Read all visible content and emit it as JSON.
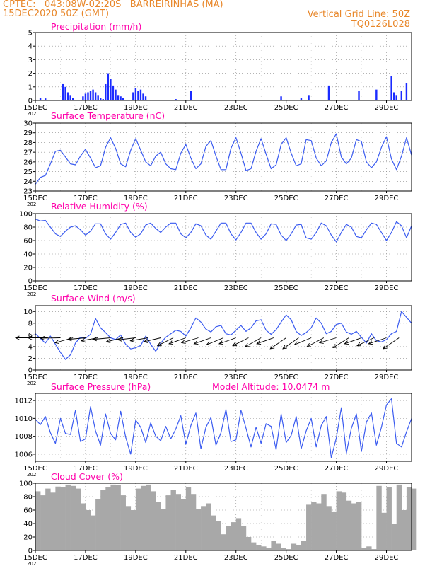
{
  "header": {
    "line1_left": "CPTEC:   043:08W-02:20S   BARREIRINHAS (MA)",
    "line2_left": "15DEC2020 50Z (GMT)",
    "line1_right": "Vertical Grid Line: 50Z",
    "line2_right": "TQ0126L028"
  },
  "colors": {
    "header": "#e8872a",
    "title": "#ff00aa",
    "line": "#3a5bf0",
    "bar": "#1a2bff",
    "cloud": "#a8a8a8",
    "frame": "#000000",
    "grid": "#888888"
  },
  "x_ticks": [
    "15DEC",
    "17DEC",
    "19DEC",
    "21DEC",
    "23DEC",
    "25DEC",
    "27DEC",
    "29DEC"
  ],
  "x_tick_sub": "202",
  "chart_data": [
    {
      "type": "bar",
      "title": "Precipitation (mm/h)",
      "ylim": [
        0,
        5
      ],
      "yticks": [
        0,
        1,
        2,
        3,
        4,
        5
      ],
      "x_days": [
        15,
        30
      ],
      "x": [
        15.2,
        15.4,
        16.1,
        16.2,
        16.3,
        16.4,
        16.5,
        16.9,
        17.0,
        17.1,
        17.2,
        17.3,
        17.4,
        17.5,
        17.6,
        17.7,
        17.8,
        17.9,
        18.0,
        18.1,
        18.2,
        18.3,
        18.4,
        18.5,
        18.9,
        19.0,
        19.1,
        19.2,
        19.3,
        19.4,
        20.6,
        21.2,
        24.8,
        25.6,
        25.9,
        26.7,
        27.9,
        28.6,
        29.2,
        29.3,
        29.4,
        29.6,
        29.8
      ],
      "values": [
        0.2,
        0.15,
        1.2,
        1.0,
        0.6,
        0.4,
        0.2,
        0.3,
        0.5,
        0.6,
        0.7,
        0.8,
        0.6,
        0.4,
        0.2,
        0.1,
        1.2,
        2.0,
        1.6,
        1.1,
        0.8,
        0.4,
        0.3,
        0.2,
        0.6,
        0.9,
        0.7,
        0.8,
        0.5,
        0.3,
        0.1,
        0.7,
        0.3,
        0.2,
        0.4,
        1.1,
        0.7,
        0.8,
        1.8,
        0.6,
        0.4,
        0.7,
        1.3
      ]
    },
    {
      "type": "line",
      "title": "Surface Temperature (nC)",
      "ylim": [
        23,
        30
      ],
      "yticks": [
        23,
        24,
        25,
        26,
        27,
        28,
        29,
        30
      ],
      "x_days": [
        15,
        30
      ],
      "x": [
        15.0,
        15.2,
        15.4,
        15.6,
        15.8,
        16.0,
        16.2,
        16.4,
        16.6,
        16.8,
        17.0,
        17.2,
        17.4,
        17.6,
        17.8,
        18.0,
        18.2,
        18.4,
        18.6,
        18.8,
        19.0,
        19.2,
        19.4,
        19.6,
        19.8,
        20.0,
        20.2,
        20.4,
        20.6,
        20.8,
        21.0,
        21.2,
        21.4,
        21.6,
        21.8,
        22.0,
        22.2,
        22.4,
        22.6,
        22.8,
        23.0,
        23.2,
        23.4,
        23.6,
        23.8,
        24.0,
        24.2,
        24.4,
        24.6,
        24.8,
        25.0,
        25.2,
        25.4,
        25.6,
        25.8,
        26.0,
        26.2,
        26.4,
        26.6,
        26.8,
        27.0,
        27.2,
        27.4,
        27.6,
        27.8,
        28.0,
        28.2,
        28.4,
        28.6,
        28.8,
        29.0,
        29.2,
        29.4,
        29.6,
        29.8,
        30.0
      ],
      "values": [
        23.7,
        24.4,
        24.6,
        25.8,
        27.1,
        27.2,
        26.5,
        25.8,
        25.7,
        26.6,
        27.3,
        26.4,
        25.4,
        25.6,
        27.5,
        28.5,
        27.4,
        25.8,
        25.5,
        27.2,
        28.4,
        27.2,
        26.0,
        25.6,
        26.6,
        27.0,
        25.8,
        25.3,
        25.2,
        26.9,
        27.8,
        26.4,
        25.3,
        25.8,
        27.6,
        28.2,
        26.6,
        25.2,
        25.2,
        27.4,
        28.5,
        26.9,
        25.1,
        25.3,
        27.1,
        28.4,
        26.8,
        25.3,
        25.7,
        27.8,
        28.5,
        26.9,
        25.6,
        25.8,
        28.3,
        28.2,
        26.4,
        25.6,
        26.1,
        28.0,
        28.9,
        26.5,
        25.8,
        26.4,
        28.3,
        28.1,
        26.0,
        25.4,
        26.0,
        27.5,
        28.6,
        26.3,
        25.2,
        26.6,
        28.5,
        26.7
      ]
    },
    {
      "type": "line",
      "title": "Relative Humidity (%)",
      "ylim": [
        0,
        100
      ],
      "yticks": [
        0,
        20,
        40,
        60,
        80,
        100
      ],
      "x_days": [
        15,
        30
      ],
      "x": [
        15.0,
        15.2,
        15.4,
        15.6,
        15.8,
        16.0,
        16.2,
        16.4,
        16.6,
        16.8,
        17.0,
        17.2,
        17.4,
        17.6,
        17.8,
        18.0,
        18.2,
        18.4,
        18.6,
        18.8,
        19.0,
        19.2,
        19.4,
        19.6,
        19.8,
        20.0,
        20.2,
        20.4,
        20.6,
        20.8,
        21.0,
        21.2,
        21.4,
        21.6,
        21.8,
        22.0,
        22.2,
        22.4,
        22.6,
        22.8,
        23.0,
        23.2,
        23.4,
        23.6,
        23.8,
        24.0,
        24.2,
        24.4,
        24.6,
        24.8,
        25.0,
        25.2,
        25.4,
        25.6,
        25.8,
        26.0,
        26.2,
        26.4,
        26.6,
        26.8,
        27.0,
        27.2,
        27.4,
        27.6,
        27.8,
        28.0,
        28.2,
        28.4,
        28.6,
        28.8,
        29.0,
        29.2,
        29.4,
        29.6,
        29.8,
        30.0
      ],
      "values": [
        92,
        89,
        90,
        80,
        70,
        66,
        74,
        80,
        82,
        76,
        68,
        74,
        85,
        85,
        70,
        62,
        72,
        84,
        86,
        72,
        65,
        70,
        83,
        86,
        78,
        72,
        80,
        86,
        86,
        70,
        64,
        72,
        85,
        82,
        68,
        62,
        74,
        86,
        86,
        70,
        61,
        72,
        86,
        86,
        72,
        62,
        70,
        85,
        84,
        68,
        60,
        70,
        83,
        84,
        64,
        62,
        72,
        86,
        82,
        68,
        58,
        72,
        84,
        80,
        66,
        64,
        76,
        86,
        84,
        72,
        60,
        72,
        88,
        82,
        64,
        82
      ]
    },
    {
      "type": "line",
      "title": "Surface Wind (m/s)",
      "ylim": [
        0,
        11
      ],
      "yticks": [
        0,
        2,
        4,
        6,
        8,
        10
      ],
      "x_days": [
        15,
        30
      ],
      "x": [
        15.0,
        15.2,
        15.4,
        15.6,
        15.8,
        16.0,
        16.2,
        16.4,
        16.6,
        16.8,
        17.0,
        17.2,
        17.4,
        17.6,
        17.8,
        18.0,
        18.2,
        18.4,
        18.6,
        18.8,
        19.0,
        19.2,
        19.4,
        19.6,
        19.8,
        20.0,
        20.2,
        20.4,
        20.6,
        20.8,
        21.0,
        21.2,
        21.4,
        21.6,
        21.8,
        22.0,
        22.2,
        22.4,
        22.6,
        22.8,
        23.0,
        23.2,
        23.4,
        23.6,
        23.8,
        24.0,
        24.2,
        24.4,
        24.6,
        24.8,
        25.0,
        25.2,
        25.4,
        25.6,
        25.8,
        26.0,
        26.2,
        26.4,
        26.6,
        26.8,
        27.0,
        27.2,
        27.4,
        27.6,
        27.8,
        28.0,
        28.2,
        28.4,
        28.6,
        28.8,
        29.0,
        29.2,
        29.4,
        29.6,
        29.8,
        30.0
      ],
      "values": [
        6.2,
        5.4,
        4.6,
        5.8,
        4.4,
        3.0,
        1.8,
        2.6,
        4.6,
        5.6,
        5.4,
        6.1,
        8.8,
        7.2,
        6.4,
        5.5,
        5.2,
        6.0,
        4.4,
        3.6,
        3.8,
        4.2,
        5.8,
        4.4,
        3.2,
        4.6,
        5.6,
        6.2,
        6.8,
        6.6,
        5.8,
        7.2,
        8.9,
        8.2,
        7.0,
        6.5,
        7.4,
        7.6,
        6.2,
        6.0,
        6.8,
        7.6,
        6.6,
        7.2,
        8.4,
        8.6,
        6.8,
        6.1,
        6.9,
        8.2,
        9.4,
        8.6,
        6.6,
        5.9,
        6.4,
        7.2,
        8.9,
        8.0,
        6.2,
        6.6,
        7.8,
        8.0,
        6.5,
        6.1,
        6.6,
        5.6,
        4.6,
        6.2,
        5.0,
        4.8,
        5.2,
        6.2,
        6.6,
        10.0,
        9.0,
        8.0
      ],
      "arrow_x": [
        15.0,
        15.5,
        16.0,
        16.5,
        17.0,
        17.5,
        18.0,
        18.5,
        19.0,
        19.5,
        20.0,
        20.5,
        21.0,
        21.5,
        22.0,
        22.5,
        23.0,
        23.5,
        24.0,
        24.5,
        25.0,
        25.5,
        26.0,
        26.5,
        27.0,
        27.5,
        28.0,
        28.5,
        29.0,
        29.5
      ],
      "arrow_dx": [
        1.0,
        1.0,
        1.0,
        0.9,
        0.9,
        0.85,
        0.9,
        0.85,
        0.9,
        0.9,
        0.85,
        0.8,
        0.85,
        0.85,
        0.85,
        0.85,
        0.85,
        0.8,
        0.8,
        0.85,
        0.8,
        0.8,
        0.85,
        0.85,
        0.85,
        0.8,
        0.85,
        0.85,
        0.9,
        0.8
      ],
      "arrow_dy": [
        0.0,
        0.0,
        -0.02,
        -0.25,
        -0.08,
        -0.15,
        -0.08,
        -0.2,
        -0.1,
        -0.15,
        -0.2,
        -0.4,
        -0.3,
        -0.25,
        -0.3,
        -0.35,
        -0.3,
        -0.4,
        -0.45,
        -0.3,
        -0.55,
        -0.55,
        -0.35,
        -0.45,
        -0.25,
        -0.5,
        -0.3,
        -0.4,
        -0.3,
        -0.55
      ]
    },
    {
      "type": "line",
      "title": "Surface Pressure (hPa)",
      "ylim": [
        1005.2,
        1012.8
      ],
      "yticks": [
        1006,
        1008,
        1010,
        1012
      ],
      "x_days": [
        15,
        30
      ],
      "x": [
        15.0,
        15.2,
        15.4,
        15.6,
        15.8,
        16.0,
        16.2,
        16.4,
        16.6,
        16.8,
        17.0,
        17.2,
        17.4,
        17.6,
        17.8,
        18.0,
        18.2,
        18.4,
        18.6,
        18.8,
        19.0,
        19.2,
        19.4,
        19.6,
        19.8,
        20.0,
        20.2,
        20.4,
        20.6,
        20.8,
        21.0,
        21.2,
        21.4,
        21.6,
        21.8,
        22.0,
        22.2,
        22.4,
        22.6,
        22.8,
        23.0,
        23.2,
        23.4,
        23.6,
        23.8,
        24.0,
        24.2,
        24.4,
        24.6,
        24.8,
        25.0,
        25.2,
        25.4,
        25.6,
        25.8,
        26.0,
        26.2,
        26.4,
        26.6,
        26.8,
        27.0,
        27.2,
        27.4,
        27.6,
        27.8,
        28.0,
        28.2,
        28.4,
        28.6,
        28.8,
        29.0,
        29.2,
        29.4,
        29.6,
        29.8,
        30.0
      ],
      "values": [
        1009.9,
        1009.3,
        1010.2,
        1008.4,
        1007.2,
        1010.0,
        1008.3,
        1008.2,
        1010.9,
        1007.4,
        1007.7,
        1011.3,
        1008.6,
        1007.0,
        1010.5,
        1008.3,
        1007.6,
        1010.8,
        1007.9,
        1006.0,
        1009.8,
        1009.0,
        1007.3,
        1009.5,
        1008.0,
        1007.5,
        1009.1,
        1007.7,
        1008.8,
        1010.3,
        1007.1,
        1009.2,
        1010.6,
        1006.6,
        1009.0,
        1010.1,
        1007.0,
        1008.4,
        1011.0,
        1007.4,
        1007.6,
        1010.9,
        1008.9,
        1006.8,
        1009.0,
        1007.2,
        1009.4,
        1009.1,
        1006.5,
        1010.5,
        1007.3,
        1008.1,
        1010.2,
        1006.6,
        1008.6,
        1010.0,
        1006.8,
        1009.2,
        1010.2,
        1005.6,
        1007.8,
        1011.2,
        1006.1,
        1008.9,
        1010.5,
        1006.3,
        1009.6,
        1010.6,
        1007.0,
        1009.0,
        1011.5,
        1012.2,
        1007.2,
        1006.8,
        1008.5,
        1010.0
      ]
    },
    {
      "type": "area",
      "title": "Cloud Cover (%)",
      "ylim": [
        0,
        100
      ],
      "yticks": [
        0,
        20,
        40,
        60,
        80,
        100
      ],
      "x_days": [
        15,
        30
      ],
      "x": [
        15.0,
        15.2,
        15.4,
        15.6,
        15.8,
        16.0,
        16.2,
        16.4,
        16.6,
        16.8,
        17.0,
        17.2,
        17.4,
        17.6,
        17.8,
        18.0,
        18.2,
        18.4,
        18.6,
        18.8,
        19.0,
        19.2,
        19.4,
        19.6,
        19.8,
        20.0,
        20.2,
        20.4,
        20.6,
        20.8,
        21.0,
        21.2,
        21.4,
        21.6,
        21.8,
        22.0,
        22.2,
        22.4,
        22.6,
        22.8,
        23.0,
        23.2,
        23.4,
        23.6,
        23.8,
        24.0,
        24.2,
        24.4,
        24.6,
        24.8,
        25.0,
        25.2,
        25.4,
        25.6,
        25.8,
        26.0,
        26.2,
        26.4,
        26.6,
        26.8,
        27.0,
        27.2,
        27.4,
        27.6,
        27.8,
        28.0,
        28.2,
        28.4,
        28.6,
        28.8,
        29.0,
        29.2,
        29.4,
        29.6,
        29.8,
        30.0
      ],
      "values": [
        88,
        82,
        92,
        86,
        95,
        94,
        98,
        96,
        92,
        70,
        60,
        52,
        76,
        90,
        94,
        98,
        97,
        82,
        66,
        60,
        92,
        96,
        98,
        88,
        72,
        62,
        82,
        90,
        84,
        76,
        94,
        84,
        62,
        66,
        70,
        52,
        44,
        24,
        36,
        42,
        48,
        36,
        20,
        12,
        8,
        6,
        4,
        14,
        10,
        4,
        2,
        10,
        8,
        14,
        68,
        72,
        70,
        84,
        66,
        58,
        88,
        86,
        74,
        70,
        72,
        4,
        6,
        2,
        96,
        56,
        94,
        40,
        98,
        60,
        94,
        92
      ]
    }
  ]
}
